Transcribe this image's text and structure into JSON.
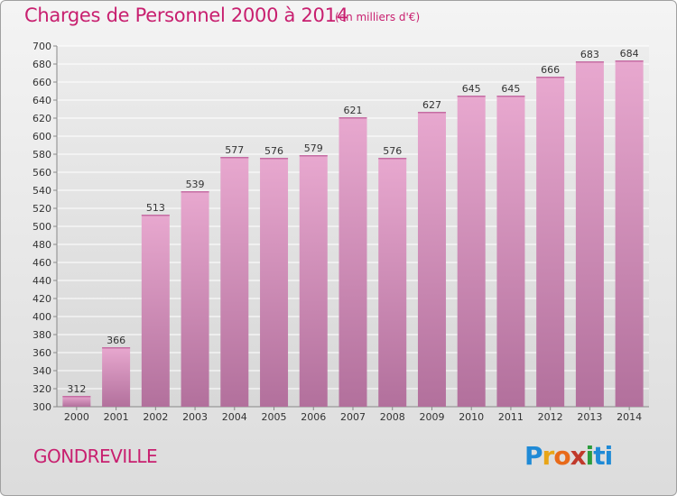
{
  "header": {
    "title": "Charges de Personnel 2000 à 2014",
    "subtitle": "(en milliers d'€)"
  },
  "footer": {
    "commune": "GONDREVILLE",
    "logo_text": "Proxiti"
  },
  "colors": {
    "title": "#c81f6f",
    "bar_top": "#e8a8cf",
    "bar_bottom": "#b2709c"
  },
  "chart_data": {
    "type": "bar",
    "title": "Charges de Personnel 2000 à 2014",
    "subtitle": "(en milliers d'€)",
    "categories": [
      "2000",
      "2001",
      "2002",
      "2003",
      "2004",
      "2005",
      "2006",
      "2007",
      "2008",
      "2009",
      "2010",
      "2011",
      "2012",
      "2013",
      "2014"
    ],
    "values": [
      312,
      366,
      513,
      539,
      577,
      576,
      579,
      621,
      576,
      627,
      645,
      645,
      666,
      683,
      684
    ],
    "ylim": [
      300,
      700
    ],
    "yticks": [
      300,
      320,
      340,
      360,
      380,
      400,
      420,
      440,
      460,
      480,
      500,
      520,
      540,
      560,
      580,
      600,
      620,
      640,
      660,
      680,
      700
    ],
    "grid": true,
    "xlabel": "",
    "ylabel": ""
  }
}
